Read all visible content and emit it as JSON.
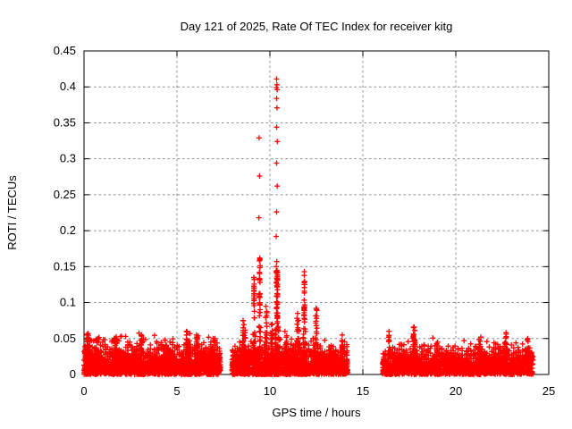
{
  "chart_data": {
    "type": "scatter",
    "title": "Day 121 of 2025, Rate Of TEC Index for receiver kitg",
    "xlabel": "GPS time / hours",
    "ylabel": "ROTI / TECUs",
    "xlim": [
      0,
      25
    ],
    "ylim": [
      0,
      0.45
    ],
    "xticks": [
      0,
      5,
      10,
      15,
      20,
      25
    ],
    "yticks": [
      0,
      0.05,
      0.1,
      0.15,
      0.2,
      0.25,
      0.3,
      0.35,
      0.4,
      0.45
    ],
    "grid": true,
    "legend": null,
    "marker": {
      "glyph": "+",
      "size": 7,
      "color": "#ff0000"
    },
    "colors": {
      "marker": "#ff0000",
      "grid": "#8c8c8c",
      "axis": "#000000",
      "background": "#ffffff"
    },
    "seed": 1212025,
    "noise_bands": [
      {
        "x_start": 0.0,
        "x_end": 7.35,
        "dense_top": 0.031,
        "grass_top": 0.054,
        "points": 2200
      },
      {
        "x_start": 7.95,
        "x_end": 14.2,
        "dense_top": 0.029,
        "grass_top": 0.05,
        "points": 1900
      },
      {
        "x_start": 16.05,
        "x_end": 24.15,
        "dense_top": 0.027,
        "grass_top": 0.047,
        "points": 2300
      }
    ],
    "spike_clusters": [
      {
        "x": 0.2,
        "w": 0.2,
        "top": 0.057,
        "count": 50
      },
      {
        "x": 0.7,
        "w": 0.3,
        "top": 0.05,
        "count": 40
      },
      {
        "x": 1.7,
        "w": 0.5,
        "top": 0.05,
        "count": 50
      },
      {
        "x": 3.1,
        "w": 0.25,
        "top": 0.055,
        "count": 35
      },
      {
        "x": 4.4,
        "w": 0.3,
        "top": 0.048,
        "count": 30
      },
      {
        "x": 5.6,
        "w": 0.5,
        "top": 0.06,
        "count": 60
      },
      {
        "x": 6.1,
        "w": 0.3,
        "top": 0.055,
        "count": 35
      },
      {
        "x": 7.0,
        "w": 0.3,
        "top": 0.05,
        "count": 30
      },
      {
        "x": 8.6,
        "w": 0.4,
        "top": 0.075,
        "count": 50
      },
      {
        "x": 9.15,
        "w": 0.12,
        "top": 0.135,
        "count": 55
      },
      {
        "x": 9.45,
        "w": 0.12,
        "top": 0.162,
        "count": 65
      },
      {
        "x": 9.8,
        "w": 0.25,
        "top": 0.095,
        "count": 50
      },
      {
        "x": 10.1,
        "w": 0.2,
        "top": 0.07,
        "count": 40
      },
      {
        "x": 10.38,
        "w": 0.2,
        "top": 0.15,
        "count": 105
      },
      {
        "x": 10.85,
        "w": 0.3,
        "top": 0.06,
        "count": 35
      },
      {
        "x": 11.5,
        "w": 0.35,
        "top": 0.085,
        "count": 45
      },
      {
        "x": 11.85,
        "w": 0.13,
        "top": 0.143,
        "count": 65
      },
      {
        "x": 12.5,
        "w": 0.2,
        "top": 0.092,
        "count": 45
      },
      {
        "x": 13.9,
        "w": 0.25,
        "top": 0.055,
        "count": 30
      },
      {
        "x": 16.4,
        "w": 0.2,
        "top": 0.06,
        "count": 30
      },
      {
        "x": 17.75,
        "w": 0.25,
        "top": 0.066,
        "count": 50
      },
      {
        "x": 19.0,
        "w": 0.3,
        "top": 0.045,
        "count": 30
      },
      {
        "x": 21.3,
        "w": 0.25,
        "top": 0.052,
        "count": 35
      },
      {
        "x": 22.7,
        "w": 0.2,
        "top": 0.058,
        "count": 40
      },
      {
        "x": 23.9,
        "w": 0.2,
        "top": 0.05,
        "count": 30
      }
    ],
    "outlier_points": [
      [
        9.42,
        0.329
      ],
      [
        9.44,
        0.276
      ],
      [
        9.41,
        0.218
      ],
      [
        10.36,
        0.411
      ],
      [
        10.38,
        0.403
      ],
      [
        10.35,
        0.399
      ],
      [
        10.39,
        0.396
      ],
      [
        10.36,
        0.384
      ],
      [
        10.38,
        0.371
      ],
      [
        10.36,
        0.344
      ],
      [
        10.4,
        0.324
      ],
      [
        10.36,
        0.294
      ],
      [
        10.39,
        0.262
      ],
      [
        10.36,
        0.226
      ],
      [
        10.34,
        0.192
      ],
      [
        10.37,
        0.157
      ]
    ]
  }
}
